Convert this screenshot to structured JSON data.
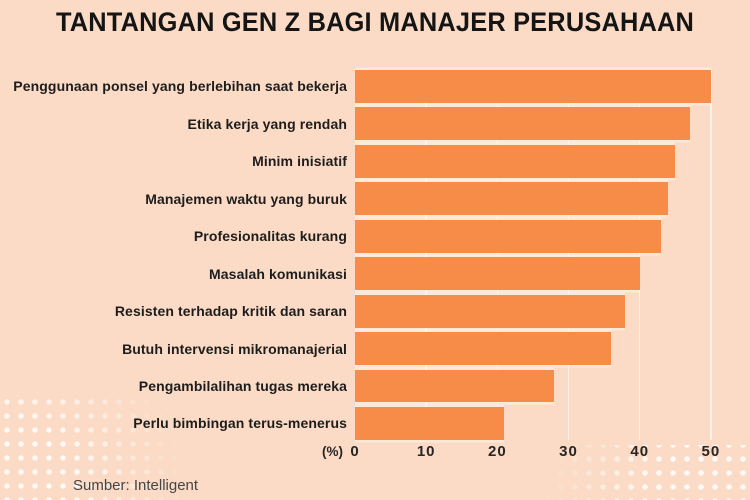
{
  "title": "TANTANGAN GEN Z BAGI MANAJER PERUSAHAAN",
  "source": "Sumber: Intelligent",
  "axis": {
    "unit_label": "(%)"
  },
  "colors": {
    "background": "#FBDBC5",
    "bar": "#F78C48",
    "title_text": "#151515",
    "label_text": "#1D1D1D",
    "axis_text": "#262626",
    "source_text": "#454545",
    "gridline": "rgba(255,255,255,0.65)",
    "dots": "rgba(255,255,255,0.85)"
  },
  "chart_data": {
    "type": "bar",
    "orientation": "horizontal",
    "title": "TANTANGAN GEN Z BAGI MANAJER PERUSAHAAN",
    "xlabel": "(%)",
    "categories": [
      "Penggunaan ponsel yang berlebihan saat bekerja",
      "Etika kerja yang rendah",
      "Minim inisiatif",
      "Manajemen waktu yang buruk",
      "Profesionalitas kurang",
      "Masalah komunikasi",
      "Resisten terhadap kritik dan saran",
      "Butuh intervensi mikromanajerial",
      "Pengambilalihan tugas mereka",
      "Perlu bimbingan terus-menerus"
    ],
    "values": [
      50,
      47,
      45,
      44,
      43,
      40,
      38,
      36,
      28,
      21
    ],
    "xticks": [
      0,
      10,
      20,
      30,
      40,
      50
    ],
    "xlim": [
      0,
      51
    ],
    "grid": true,
    "legend": false,
    "source": "Sumber: Intelligent"
  }
}
